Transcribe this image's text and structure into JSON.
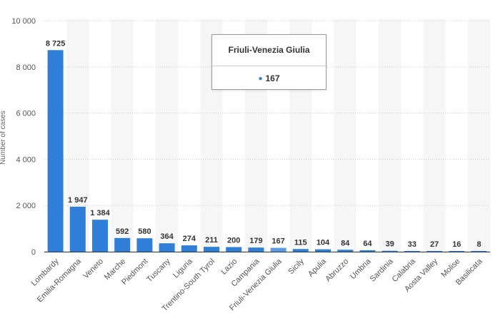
{
  "chart_data": {
    "type": "bar",
    "title": "",
    "xlabel": "",
    "ylabel": "Number of cases",
    "ylim": [
      0,
      10000
    ],
    "yticks": [
      0,
      2000,
      4000,
      6000,
      8000,
      10000
    ],
    "ytick_labels": [
      "0",
      "2 000",
      "4 000",
      "6 000",
      "8 000",
      "10 000"
    ],
    "grid": true,
    "categories": [
      "Lombardy",
      "Emilia-Romagna",
      "Veneto",
      "Marche",
      "Piedmont",
      "Tuscany",
      "Liguria",
      "Trentino-South Tyrol",
      "Lazio",
      "Campania",
      "Friuli-Venezia Giulia",
      "Sicily",
      "Apulia",
      "Abruzzo",
      "Umbria",
      "Sardinia",
      "Calabria",
      "Aosta Valley",
      "Molise",
      "Basilicata"
    ],
    "values": [
      8725,
      1947,
      1384,
      592,
      580,
      364,
      274,
      211,
      200,
      179,
      167,
      115,
      104,
      84,
      64,
      39,
      33,
      27,
      16,
      8
    ],
    "value_labels": [
      "8 725",
      "1 947",
      "1 384",
      "592",
      "580",
      "364",
      "274",
      "211",
      "200",
      "179",
      "167",
      "115",
      "104",
      "84",
      "64",
      "39",
      "33",
      "27",
      "16",
      "8"
    ],
    "bar_color": "#2f7ed8",
    "highlighted_bar_color": "#5b9be3"
  },
  "tooltip": {
    "title": "Friuli-Venezia Giulia",
    "value": "167"
  },
  "colors": {
    "bar": "#2f7ed8",
    "grid": "#cccccc",
    "band": "#f6f6f6"
  }
}
